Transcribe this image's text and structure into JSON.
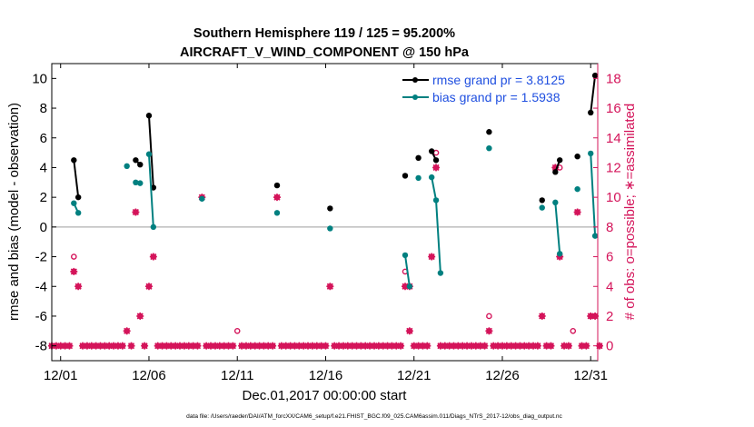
{
  "chart_data": {
    "type": "line",
    "title_line1": "Southern Hemisphere 119 / 125 = 95.200%",
    "title_line2": "AIRCRAFT_V_WIND_COMPONENT @ 150 hPa",
    "xlabel": "Dec.01,2017 00:00:00 start",
    "ylabel_left": "rmse and bias (model - observation)",
    "ylabel_right": "# of obs: o=possible; ∗=assimilated",
    "footer": "data file: /Users/raeder/DAI/ATM_forcXX/CAM6_setup/f.e21.FHIST_BGC.f09_025.CAM6assim.011/Diags_NTrS_2017-12/obs_diag_output.nc",
    "xlim": [
      0.5,
      31.4
    ],
    "ylim_left": [
      -9,
      11
    ],
    "ylim_right": [
      -1,
      19
    ],
    "x_ticks": [
      1,
      6,
      11,
      16,
      21,
      26,
      31
    ],
    "x_tick_labels": [
      "12/01",
      "12/06",
      "12/11",
      "12/16",
      "12/21",
      "12/26",
      "12/31"
    ],
    "y_ticks_left": [
      -8,
      -6,
      -4,
      -2,
      0,
      2,
      4,
      6,
      8,
      10
    ],
    "y_ticks_right": [
      0,
      2,
      4,
      6,
      8,
      10,
      12,
      14,
      16,
      18
    ],
    "legend": [
      "rmse grand pr = 3.8125",
      "bias grand pr = 1.5938"
    ],
    "colors": {
      "rmse": "#000000",
      "bias": "#008080",
      "obs": "#d4145a",
      "axis": "#000000",
      "zero": "#b0b0b0",
      "legend_text": "#1f4fe0"
    },
    "series": [
      {
        "name": "rmse",
        "segments": [
          [
            [
              1.75,
              4.5
            ],
            [
              2.0,
              2.0
            ]
          ],
          [
            [
              5.25,
              4.5
            ],
            [
              5.5,
              4.2
            ]
          ],
          [
            [
              6.0,
              7.5
            ],
            [
              6.25,
              2.65
            ]
          ],
          [
            [
              13.25,
              2.8
            ]
          ],
          [
            [
              16.25,
              1.25
            ]
          ],
          [
            [
              20.5,
              3.45
            ]
          ],
          [
            [
              21.25,
              4.65
            ]
          ],
          [
            [
              22.0,
              5.1
            ],
            [
              22.25,
              4.5
            ]
          ],
          [
            [
              25.25,
              6.4
            ]
          ],
          [
            [
              28.25,
              1.8
            ]
          ],
          [
            [
              29.0,
              3.7
            ],
            [
              29.25,
              4.5
            ]
          ],
          [
            [
              30.25,
              4.75
            ]
          ],
          [
            [
              31.0,
              7.7
            ],
            [
              31.25,
              10.2
            ]
          ]
        ]
      },
      {
        "name": "bias",
        "segments": [
          [
            [
              1.75,
              1.6
            ],
            [
              2.0,
              0.95
            ]
          ],
          [
            [
              4.75,
              4.1
            ]
          ],
          [
            [
              5.25,
              3.0
            ],
            [
              5.5,
              2.95
            ]
          ],
          [
            [
              6.0,
              4.9
            ],
            [
              6.25,
              0.0
            ]
          ],
          [
            [
              9.0,
              1.9
            ]
          ],
          [
            [
              13.25,
              0.95
            ]
          ],
          [
            [
              16.25,
              -0.1
            ]
          ],
          [
            [
              20.5,
              -1.9
            ],
            [
              20.75,
              -4.0
            ]
          ],
          [
            [
              21.25,
              3.3
            ]
          ],
          [
            [
              22.0,
              3.35
            ],
            [
              22.25,
              1.8
            ],
            [
              22.5,
              -3.1
            ]
          ],
          [
            [
              25.25,
              5.3
            ]
          ],
          [
            [
              28.25,
              1.3
            ]
          ],
          [
            [
              29.0,
              1.65
            ],
            [
              29.25,
              -1.8
            ]
          ],
          [
            [
              30.25,
              2.55
            ]
          ],
          [
            [
              31.0,
              4.95
            ],
            [
              31.25,
              -0.6
            ]
          ]
        ]
      }
    ],
    "obs_possible": [
      [
        0.5,
        0
      ],
      [
        0.75,
        0
      ],
      [
        1.0,
        0
      ],
      [
        1.25,
        0
      ],
      [
        1.5,
        0
      ],
      [
        1.75,
        6
      ],
      [
        1.75,
        5
      ],
      [
        2.0,
        4
      ],
      [
        2.25,
        0
      ],
      [
        2.5,
        0
      ],
      [
        2.75,
        0
      ],
      [
        3.0,
        0
      ],
      [
        3.25,
        0
      ],
      [
        3.5,
        0
      ],
      [
        3.75,
        0
      ],
      [
        4.0,
        0
      ],
      [
        4.25,
        0
      ],
      [
        4.5,
        0
      ],
      [
        4.75,
        1
      ],
      [
        5.0,
        0
      ],
      [
        5.25,
        9
      ],
      [
        5.5,
        2
      ],
      [
        5.75,
        0
      ],
      [
        6.0,
        4
      ],
      [
        6.25,
        6
      ],
      [
        6.5,
        0
      ],
      [
        6.75,
        0
      ],
      [
        7.0,
        0
      ],
      [
        7.25,
        0
      ],
      [
        7.5,
        0
      ],
      [
        7.75,
        0
      ],
      [
        8.0,
        0
      ],
      [
        8.25,
        0
      ],
      [
        8.5,
        0
      ],
      [
        8.75,
        0
      ],
      [
        9.0,
        10
      ],
      [
        9.25,
        0
      ],
      [
        9.5,
        0
      ],
      [
        9.75,
        0
      ],
      [
        10.0,
        0
      ],
      [
        10.25,
        0
      ],
      [
        10.5,
        0
      ],
      [
        10.75,
        0
      ],
      [
        11.0,
        1
      ],
      [
        11.25,
        0
      ],
      [
        11.5,
        0
      ],
      [
        11.75,
        0
      ],
      [
        12.0,
        0
      ],
      [
        12.25,
        0
      ],
      [
        12.5,
        0
      ],
      [
        12.75,
        0
      ],
      [
        13.0,
        0
      ],
      [
        13.25,
        10
      ],
      [
        13.5,
        0
      ],
      [
        13.75,
        0
      ],
      [
        14.0,
        0
      ],
      [
        14.25,
        0
      ],
      [
        14.5,
        0
      ],
      [
        14.75,
        0
      ],
      [
        15.0,
        0
      ],
      [
        15.25,
        0
      ],
      [
        15.5,
        0
      ],
      [
        15.75,
        0
      ],
      [
        16.0,
        0
      ],
      [
        16.25,
        4
      ],
      [
        16.5,
        0
      ],
      [
        16.75,
        0
      ],
      [
        17.0,
        0
      ],
      [
        17.25,
        0
      ],
      [
        17.5,
        0
      ],
      [
        17.75,
        0
      ],
      [
        18.0,
        0
      ],
      [
        18.25,
        0
      ],
      [
        18.5,
        0
      ],
      [
        18.75,
        0
      ],
      [
        19.0,
        0
      ],
      [
        19.25,
        0
      ],
      [
        19.5,
        0
      ],
      [
        19.75,
        0
      ],
      [
        20.0,
        0
      ],
      [
        20.25,
        0
      ],
      [
        20.5,
        5
      ],
      [
        20.5,
        4
      ],
      [
        20.75,
        1
      ],
      [
        20.75,
        4
      ],
      [
        21.0,
        0
      ],
      [
        21.25,
        0
      ],
      [
        21.5,
        0
      ],
      [
        21.75,
        0
      ],
      [
        22.0,
        6
      ],
      [
        22.25,
        13
      ],
      [
        22.25,
        12
      ],
      [
        22.5,
        0
      ],
      [
        22.75,
        0
      ],
      [
        23.0,
        0
      ],
      [
        23.25,
        0
      ],
      [
        23.5,
        0
      ],
      [
        23.75,
        0
      ],
      [
        24.0,
        0
      ],
      [
        24.25,
        0
      ],
      [
        24.5,
        0
      ],
      [
        24.75,
        0
      ],
      [
        25.0,
        0
      ],
      [
        25.25,
        2
      ],
      [
        25.25,
        1
      ],
      [
        25.5,
        0
      ],
      [
        25.75,
        0
      ],
      [
        26.0,
        0
      ],
      [
        26.25,
        0
      ],
      [
        26.5,
        0
      ],
      [
        26.75,
        0
      ],
      [
        27.0,
        0
      ],
      [
        27.25,
        0
      ],
      [
        27.5,
        0
      ],
      [
        27.75,
        0
      ],
      [
        28.0,
        0
      ],
      [
        28.25,
        2
      ],
      [
        28.5,
        0
      ],
      [
        28.75,
        0
      ],
      [
        29.0,
        12
      ],
      [
        29.25,
        12
      ],
      [
        29.25,
        6
      ],
      [
        29.5,
        0
      ],
      [
        29.75,
        0
      ],
      [
        30.0,
        1
      ],
      [
        30.25,
        9
      ],
      [
        30.5,
        0
      ],
      [
        30.75,
        0
      ],
      [
        31.0,
        2
      ],
      [
        31.25,
        2
      ],
      [
        31.5,
        0
      ]
    ],
    "obs_assimilated": [
      [
        0.5,
        0
      ],
      [
        0.75,
        0
      ],
      [
        1.0,
        0
      ],
      [
        1.25,
        0
      ],
      [
        1.5,
        0
      ],
      [
        1.75,
        5
      ],
      [
        2.0,
        4
      ],
      [
        2.25,
        0
      ],
      [
        2.5,
        0
      ],
      [
        2.75,
        0
      ],
      [
        3.0,
        0
      ],
      [
        3.25,
        0
      ],
      [
        3.5,
        0
      ],
      [
        3.75,
        0
      ],
      [
        4.0,
        0
      ],
      [
        4.25,
        0
      ],
      [
        4.5,
        0
      ],
      [
        4.75,
        1
      ],
      [
        5.0,
        0
      ],
      [
        5.25,
        9
      ],
      [
        5.5,
        2
      ],
      [
        5.75,
        0
      ],
      [
        6.0,
        4
      ],
      [
        6.25,
        6
      ],
      [
        6.5,
        0
      ],
      [
        6.75,
        0
      ],
      [
        7.0,
        0
      ],
      [
        7.25,
        0
      ],
      [
        7.5,
        0
      ],
      [
        7.75,
        0
      ],
      [
        8.0,
        0
      ],
      [
        8.25,
        0
      ],
      [
        8.5,
        0
      ],
      [
        8.75,
        0
      ],
      [
        9.0,
        10
      ],
      [
        9.25,
        0
      ],
      [
        9.5,
        0
      ],
      [
        9.75,
        0
      ],
      [
        10.0,
        0
      ],
      [
        10.25,
        0
      ],
      [
        10.5,
        0
      ],
      [
        10.75,
        0
      ],
      [
        11.25,
        0
      ],
      [
        11.5,
        0
      ],
      [
        11.75,
        0
      ],
      [
        12.0,
        0
      ],
      [
        12.25,
        0
      ],
      [
        12.5,
        0
      ],
      [
        12.75,
        0
      ],
      [
        13.0,
        0
      ],
      [
        13.25,
        10
      ],
      [
        13.5,
        0
      ],
      [
        13.75,
        0
      ],
      [
        14.0,
        0
      ],
      [
        14.25,
        0
      ],
      [
        14.5,
        0
      ],
      [
        14.75,
        0
      ],
      [
        15.0,
        0
      ],
      [
        15.25,
        0
      ],
      [
        15.5,
        0
      ],
      [
        15.75,
        0
      ],
      [
        16.0,
        0
      ],
      [
        16.25,
        4
      ],
      [
        16.5,
        0
      ],
      [
        16.75,
        0
      ],
      [
        17.0,
        0
      ],
      [
        17.25,
        0
      ],
      [
        17.5,
        0
      ],
      [
        17.75,
        0
      ],
      [
        18.0,
        0
      ],
      [
        18.25,
        0
      ],
      [
        18.5,
        0
      ],
      [
        18.75,
        0
      ],
      [
        19.0,
        0
      ],
      [
        19.25,
        0
      ],
      [
        19.5,
        0
      ],
      [
        19.75,
        0
      ],
      [
        20.0,
        0
      ],
      [
        20.25,
        0
      ],
      [
        20.5,
        4
      ],
      [
        20.75,
        1
      ],
      [
        20.75,
        4
      ],
      [
        21.0,
        0
      ],
      [
        21.25,
        0
      ],
      [
        21.5,
        0
      ],
      [
        21.75,
        0
      ],
      [
        22.0,
        6
      ],
      [
        22.25,
        12
      ],
      [
        22.5,
        0
      ],
      [
        22.75,
        0
      ],
      [
        23.0,
        0
      ],
      [
        23.25,
        0
      ],
      [
        23.5,
        0
      ],
      [
        23.75,
        0
      ],
      [
        24.0,
        0
      ],
      [
        24.25,
        0
      ],
      [
        24.5,
        0
      ],
      [
        24.75,
        0
      ],
      [
        25.0,
        0
      ],
      [
        25.25,
        1
      ],
      [
        25.5,
        0
      ],
      [
        25.75,
        0
      ],
      [
        26.0,
        0
      ],
      [
        26.25,
        0
      ],
      [
        26.5,
        0
      ],
      [
        26.75,
        0
      ],
      [
        27.0,
        0
      ],
      [
        27.25,
        0
      ],
      [
        27.5,
        0
      ],
      [
        27.75,
        0
      ],
      [
        28.0,
        0
      ],
      [
        28.25,
        2
      ],
      [
        28.5,
        0
      ],
      [
        28.75,
        0
      ],
      [
        29.0,
        12
      ],
      [
        29.25,
        6
      ],
      [
        29.5,
        0
      ],
      [
        29.75,
        0
      ],
      [
        30.25,
        9
      ],
      [
        30.5,
        0
      ],
      [
        30.75,
        0
      ],
      [
        31.0,
        2
      ],
      [
        31.25,
        2
      ],
      [
        31.5,
        0
      ]
    ]
  }
}
